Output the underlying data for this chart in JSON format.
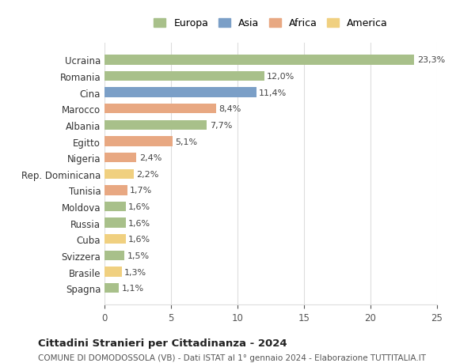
{
  "categories": [
    "Ucraina",
    "Romania",
    "Cina",
    "Marocco",
    "Albania",
    "Egitto",
    "Nigeria",
    "Rep. Dominicana",
    "Tunisia",
    "Moldova",
    "Russia",
    "Cuba",
    "Svizzera",
    "Brasile",
    "Spagna"
  ],
  "values": [
    23.3,
    12.0,
    11.4,
    8.4,
    7.7,
    5.1,
    2.4,
    2.2,
    1.7,
    1.6,
    1.6,
    1.6,
    1.5,
    1.3,
    1.1
  ],
  "labels": [
    "23,3%",
    "12,0%",
    "11,4%",
    "8,4%",
    "7,7%",
    "5,1%",
    "2,4%",
    "2,2%",
    "1,7%",
    "1,6%",
    "1,6%",
    "1,6%",
    "1,5%",
    "1,3%",
    "1,1%"
  ],
  "continents": [
    "Europa",
    "Europa",
    "Asia",
    "Africa",
    "Europa",
    "Africa",
    "Africa",
    "America",
    "Africa",
    "Europa",
    "Europa",
    "America",
    "Europa",
    "America",
    "Europa"
  ],
  "continent_colors": {
    "Europa": "#a8c08a",
    "Asia": "#7b9fc7",
    "Africa": "#e8a882",
    "America": "#f0d080"
  },
  "legend_items": [
    "Europa",
    "Asia",
    "Africa",
    "America"
  ],
  "title": "Cittadini Stranieri per Cittadinanza - 2024",
  "subtitle": "COMUNE DI DOMODOSSOLA (VB) - Dati ISTAT al 1° gennaio 2024 - Elaborazione TUTTITALIA.IT",
  "xlim": [
    0,
    25
  ],
  "xticks": [
    0,
    5,
    10,
    15,
    20,
    25
  ],
  "bg_color": "#ffffff",
  "grid_color": "#dddddd",
  "bar_height": 0.6
}
